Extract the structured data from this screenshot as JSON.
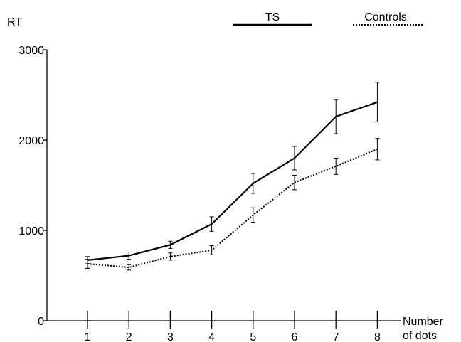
{
  "chart_data": {
    "type": "line",
    "ylabel": "RT",
    "xlabel_lines": [
      "Number",
      "of dots"
    ],
    "x": [
      1,
      2,
      3,
      4,
      5,
      6,
      7,
      8
    ],
    "x_tick_labels": [
      "1",
      "2",
      "3",
      "4",
      "5",
      "6",
      "7",
      "8"
    ],
    "y_tick_values": [
      0,
      1000,
      2000,
      3000
    ],
    "y_tick_labels": [
      "0",
      "1000",
      "2000",
      "3000"
    ],
    "ylim": [
      0,
      3000
    ],
    "grid": false,
    "legend_placement": "top",
    "series": [
      {
        "name": "TS",
        "line_style": "solid",
        "color": "#000000",
        "values": [
          670,
          720,
          840,
          1070,
          1520,
          1800,
          2260,
          2420
        ],
        "error": [
          40,
          40,
          40,
          80,
          110,
          130,
          190,
          220
        ]
      },
      {
        "name": "Controls",
        "line_style": "dotted",
        "color": "#000000",
        "values": [
          630,
          590,
          710,
          780,
          1170,
          1530,
          1710,
          1900
        ],
        "error": [
          50,
          30,
          40,
          50,
          80,
          80,
          90,
          120
        ]
      }
    ]
  }
}
